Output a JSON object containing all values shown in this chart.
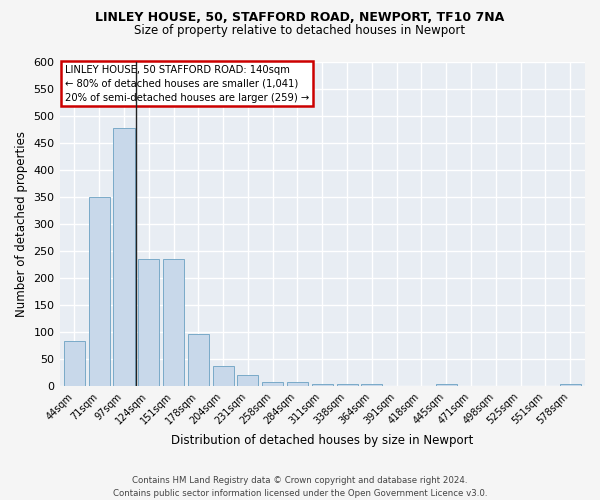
{
  "title1": "LINLEY HOUSE, 50, STAFFORD ROAD, NEWPORT, TF10 7NA",
  "title2": "Size of property relative to detached houses in Newport",
  "xlabel": "Distribution of detached houses by size in Newport",
  "ylabel": "Number of detached properties",
  "categories": [
    "44sqm",
    "71sqm",
    "97sqm",
    "124sqm",
    "151sqm",
    "178sqm",
    "204sqm",
    "231sqm",
    "258sqm",
    "284sqm",
    "311sqm",
    "338sqm",
    "364sqm",
    "391sqm",
    "418sqm",
    "445sqm",
    "471sqm",
    "498sqm",
    "525sqm",
    "551sqm",
    "578sqm"
  ],
  "values": [
    83,
    350,
    478,
    235,
    235,
    97,
    37,
    20,
    8,
    8,
    5,
    5,
    5,
    0,
    0,
    5,
    0,
    0,
    0,
    0,
    5
  ],
  "bar_color": "#c8d8ea",
  "bar_edge_color": "#7aaac8",
  "annotation_text": "LINLEY HOUSE, 50 STAFFORD ROAD: 140sqm\n← 80% of detached houses are smaller (1,041)\n20% of semi-detached houses are larger (259) →",
  "annotation_box_facecolor": "#ffffff",
  "annotation_box_edgecolor": "#cc0000",
  "vline_color": "#222222",
  "vline_x": 2.5,
  "ylim": [
    0,
    600
  ],
  "yticks": [
    0,
    50,
    100,
    150,
    200,
    250,
    300,
    350,
    400,
    450,
    500,
    550,
    600
  ],
  "bg_color": "#e8edf3",
  "plot_bg_color": "#e8edf3",
  "grid_color": "#ffffff",
  "fig_bg_color": "#f5f5f5",
  "footer": "Contains HM Land Registry data © Crown copyright and database right 2024.\nContains public sector information licensed under the Open Government Licence v3.0."
}
